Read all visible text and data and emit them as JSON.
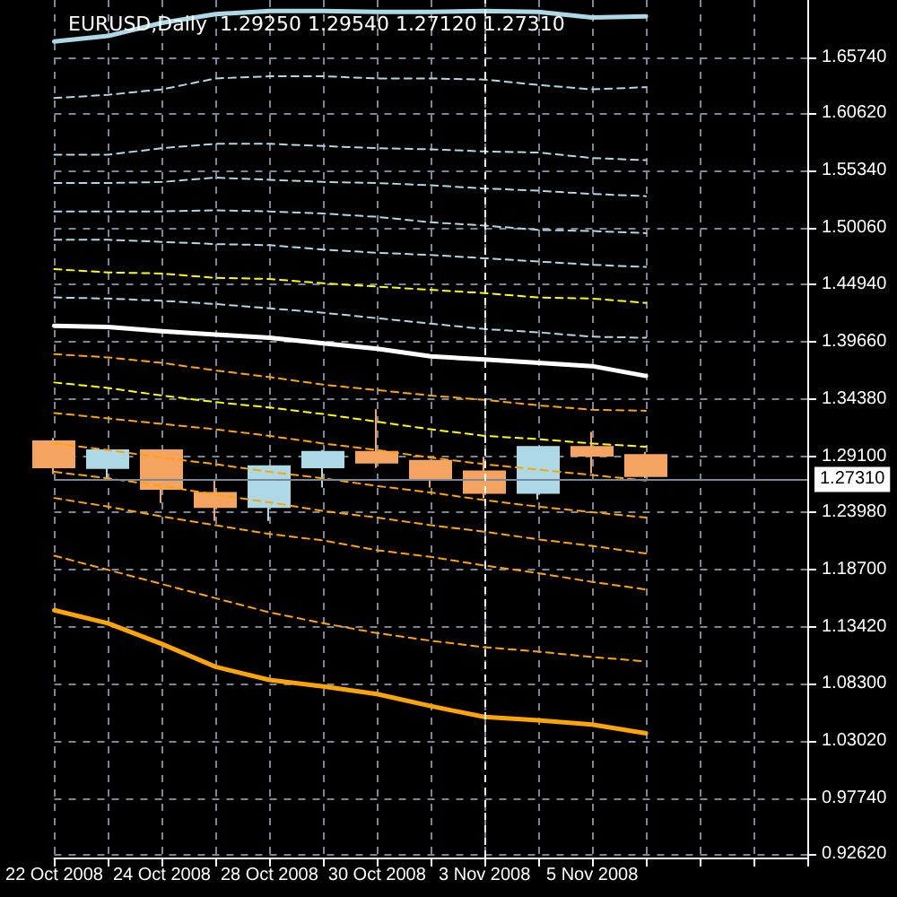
{
  "chart_data": {
    "type": "candlestick",
    "title": "EURUSD,Daily  1.29250 1.29540 1.27120 1.27310",
    "categories": [
      "22 Oct 2008",
      null,
      "24 Oct 2008",
      null,
      "28 Oct 2008",
      null,
      "30 Oct 2008",
      null,
      "3 Nov 2008",
      null,
      "5 Nov 2008",
      null,
      null,
      null,
      null
    ],
    "ohlc": [
      [
        1.305,
        1.308,
        1.275,
        1.281
      ],
      [
        1.2805,
        1.297,
        1.272,
        1.2968
      ],
      [
        1.2968,
        1.297,
        1.2483,
        1.2614
      ],
      [
        1.2577,
        1.2691,
        1.232,
        1.2446
      ],
      [
        1.2446,
        1.283,
        1.232,
        1.2822
      ],
      [
        1.281,
        1.297,
        1.2626,
        1.2952
      ],
      [
        1.2952,
        1.3344,
        1.2805,
        1.2854
      ],
      [
        1.287,
        1.288,
        1.2626,
        1.2707
      ],
      [
        1.2773,
        1.2908,
        1.2527,
        1.2577
      ],
      [
        1.2577,
        1.3,
        1.2516,
        1.2999
      ],
      [
        1.2999,
        1.3137,
        1.2756,
        1.2919
      ],
      [
        1.2925,
        1.2954,
        1.2712,
        1.2731
      ],
      null,
      null,
      null
    ],
    "colors": [
      "#f4a460",
      "#add8e6",
      "#f4a460",
      "#f4a460",
      "#add8e6",
      "#add8e6",
      "#f4a460",
      "#f4a460",
      "#f4a460",
      "#add8e6",
      "#f4a460",
      "#f4a460",
      null,
      null,
      null
    ],
    "series": [
      {
        "type": "line",
        "color": "#add8e6",
        "line_style": "solid",
        "values": [
          1.672,
          1.677,
          1.689,
          1.697,
          1.7,
          1.7,
          1.699,
          1.699,
          1.7,
          1.699,
          1.694,
          1.695,
          null,
          null,
          null
        ]
      },
      {
        "type": "line",
        "color": "#add8e6",
        "line_style": "dashed",
        "values": [
          1.62,
          1.623,
          1.628,
          1.638,
          1.64,
          1.64,
          1.638,
          1.638,
          1.637,
          1.632,
          1.628,
          1.63,
          null,
          null,
          null
        ]
      },
      {
        "type": "line",
        "color": "#add8e6",
        "line_style": "dashed",
        "values": [
          1.568,
          1.568,
          1.574,
          1.578,
          1.578,
          1.576,
          1.574,
          1.573,
          1.571,
          1.57,
          1.565,
          1.563,
          null,
          null,
          null
        ]
      },
      {
        "type": "line",
        "color": "#add8e6",
        "line_style": "dashed",
        "values": [
          1.542,
          1.542,
          1.543,
          1.547,
          1.545,
          1.543,
          1.542,
          1.54,
          1.537,
          1.535,
          1.532,
          1.53,
          null,
          null,
          null
        ]
      },
      {
        "type": "line",
        "color": "#add8e6",
        "line_style": "dashed",
        "values": [
          1.516,
          1.516,
          1.516,
          1.517,
          1.516,
          1.514,
          1.511,
          1.506,
          1.503,
          1.499,
          1.498,
          1.496,
          null,
          null,
          null
        ]
      },
      {
        "type": "line",
        "color": "#add8e6",
        "line_style": "dashed",
        "values": [
          1.49,
          1.49,
          1.488,
          1.486,
          1.485,
          1.481,
          1.478,
          1.476,
          1.473,
          1.47,
          1.467,
          1.465,
          null,
          null,
          null
        ]
      },
      {
        "type": "line",
        "color": "#ffff00",
        "line_style": "dashed",
        "values": [
          1.463,
          1.46,
          1.459,
          1.455,
          1.454,
          1.45,
          1.447,
          1.444,
          1.441,
          1.437,
          1.436,
          1.432,
          null,
          null,
          null
        ]
      },
      {
        "type": "line",
        "color": "#add8e6",
        "line_style": "dashed",
        "values": [
          1.437,
          1.436,
          1.434,
          1.431,
          1.427,
          1.423,
          1.418,
          1.413,
          1.408,
          1.405,
          1.401,
          1.4,
          null,
          null,
          null
        ]
      },
      {
        "type": "line",
        "color": "#ffffff",
        "line_style": "solid",
        "values": [
          1.411,
          1.41,
          1.406,
          1.403,
          1.4,
          1.395,
          1.39,
          1.383,
          1.38,
          1.377,
          1.374,
          1.365,
          null,
          null,
          null
        ]
      },
      {
        "type": "line",
        "color": "#ffa500",
        "line_style": "dashed",
        "values": [
          1.385,
          1.382,
          1.377,
          1.37,
          1.364,
          1.357,
          1.352,
          1.347,
          1.343,
          1.338,
          1.334,
          1.333,
          null,
          null,
          null
        ]
      },
      {
        "type": "line",
        "color": "#ffff00",
        "line_style": "dashed",
        "values": [
          1.359,
          1.354,
          1.347,
          1.341,
          1.336,
          1.33,
          1.323,
          1.316,
          1.31,
          1.307,
          1.303,
          1.3,
          null,
          null,
          null
        ]
      },
      {
        "type": "line",
        "color": "#ffa500",
        "line_style": "dashed",
        "values": [
          1.331,
          1.326,
          1.321,
          1.316,
          1.31,
          1.303,
          1.297,
          1.29,
          1.284,
          1.279,
          1.274,
          1.269,
          null,
          null,
          null
        ]
      },
      {
        "type": "line",
        "color": "#ffa500",
        "line_style": "dashed",
        "values": [
          1.303,
          1.297,
          1.29,
          1.284,
          1.277,
          1.271,
          1.264,
          1.258,
          1.251,
          1.245,
          1.24,
          1.235,
          null,
          null,
          null
        ]
      },
      {
        "type": "line",
        "color": "#ffa500",
        "line_style": "dashed",
        "values": [
          1.277,
          1.271,
          1.264,
          1.256,
          1.249,
          1.241,
          1.235,
          1.228,
          1.222,
          1.215,
          1.209,
          1.202,
          null,
          null,
          null
        ]
      },
      {
        "type": "line",
        "color": "#ffa500",
        "line_style": "dashed",
        "values": [
          1.253,
          1.245,
          1.236,
          1.228,
          1.22,
          1.214,
          1.205,
          1.199,
          1.191,
          1.184,
          1.176,
          1.169,
          null,
          null,
          null
        ]
      },
      {
        "type": "line",
        "color": "#ffa500",
        "line_style": "dashed",
        "values": [
          1.2,
          1.187,
          1.174,
          1.161,
          1.148,
          1.138,
          1.129,
          1.122,
          1.116,
          1.112,
          1.107,
          1.103,
          null,
          null,
          null
        ]
      },
      {
        "type": "line",
        "color": "#ffa500",
        "line_style": "solid",
        "values": [
          1.15,
          1.138,
          1.119,
          1.098,
          1.086,
          1.08,
          1.073,
          1.062,
          1.052,
          1.049,
          1.045,
          1.037,
          null,
          null,
          null
        ]
      }
    ],
    "ylim": [
      0.923,
      1.71
    ],
    "yticks": [
      {
        "value": 0.9262,
        "label": "0.92620"
      },
      {
        "value": 0.9774,
        "label": "0.97740"
      },
      {
        "value": 1.0302,
        "label": "1.03020"
      },
      {
        "value": 1.083,
        "label": "1.08300"
      },
      {
        "value": 1.1342,
        "label": "1.13420"
      },
      {
        "value": 1.187,
        "label": "1.18700"
      },
      {
        "value": 1.2398,
        "label": "1.23980"
      },
      {
        "value": 1.291,
        "label": "1.29100"
      },
      {
        "value": 1.3438,
        "label": "1.34380"
      },
      {
        "value": 1.3966,
        "label": "1.39660"
      },
      {
        "value": 1.4494,
        "label": "1.44940"
      },
      {
        "value": 1.5006,
        "label": "1.50060"
      },
      {
        "value": 1.5534,
        "label": "1.55340"
      },
      {
        "value": 1.6062,
        "label": "1.60620"
      },
      {
        "value": 1.6574,
        "label": "1.65740"
      }
    ],
    "ref_lines": [
      {
        "axis": "y",
        "value": 1.2731,
        "label": "1.27310",
        "color": "#778899"
      },
      {
        "axis": "x",
        "value": "3 Nov 2008",
        "label": null,
        "color": "#ffffff"
      }
    ],
    "grid": true,
    "marker": "none"
  }
}
